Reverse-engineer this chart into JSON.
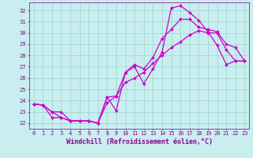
{
  "bg_color": "#c8eef0",
  "grid_color": "#9ed0cc",
  "line_color": "#cc00cc",
  "marker": "D",
  "markersize": 2.0,
  "linewidth": 0.9,
  "xlabel": "Windchill (Refroidissement éolien,°C)",
  "xlabel_color": "#880088",
  "xlabel_fontsize": 6.0,
  "tick_color": "#880088",
  "tick_fontsize": 5.0,
  "xlim": [
    -0.5,
    23.5
  ],
  "ylim": [
    21.5,
    32.7
  ],
  "xticks": [
    0,
    1,
    2,
    3,
    4,
    5,
    6,
    7,
    8,
    9,
    10,
    11,
    12,
    13,
    14,
    15,
    16,
    17,
    18,
    19,
    20,
    21,
    22,
    23
  ],
  "yticks": [
    22,
    23,
    24,
    25,
    26,
    27,
    28,
    29,
    30,
    31,
    32
  ],
  "curve1_x": [
    0,
    1,
    2,
    3,
    4,
    5,
    6,
    7,
    8,
    9,
    10,
    11,
    12,
    13,
    14,
    15,
    16,
    17,
    18,
    19,
    20,
    21,
    22,
    23
  ],
  "curve1_y": [
    23.7,
    23.6,
    23.0,
    22.5,
    22.2,
    22.2,
    22.2,
    22.0,
    24.3,
    23.1,
    26.5,
    27.0,
    25.5,
    26.8,
    28.3,
    32.2,
    32.4,
    31.8,
    31.1,
    30.1,
    28.9,
    27.2,
    27.5,
    27.5
  ],
  "curve2_x": [
    0,
    1,
    2,
    3,
    4,
    5,
    6,
    7,
    8,
    9,
    10,
    11,
    12,
    13,
    14,
    15,
    16,
    17,
    18,
    19,
    20,
    21,
    22,
    23
  ],
  "curve2_y": [
    23.7,
    23.6,
    22.5,
    22.5,
    22.2,
    22.2,
    22.2,
    22.0,
    23.8,
    24.4,
    26.5,
    27.2,
    26.8,
    27.8,
    29.5,
    30.3,
    31.2,
    31.2,
    30.5,
    30.3,
    30.1,
    29.0,
    28.7,
    27.5
  ],
  "curve3_x": [
    0,
    1,
    2,
    3,
    4,
    5,
    6,
    7,
    8,
    9,
    10,
    11,
    12,
    13,
    14,
    15,
    16,
    17,
    18,
    19,
    20,
    21,
    22,
    23
  ],
  "curve3_y": [
    23.7,
    23.6,
    23.0,
    23.0,
    22.2,
    22.2,
    22.2,
    22.0,
    24.3,
    24.4,
    25.6,
    26.0,
    26.5,
    27.3,
    28.0,
    28.7,
    29.2,
    29.8,
    30.2,
    30.0,
    30.0,
    28.5,
    27.5,
    27.5
  ]
}
